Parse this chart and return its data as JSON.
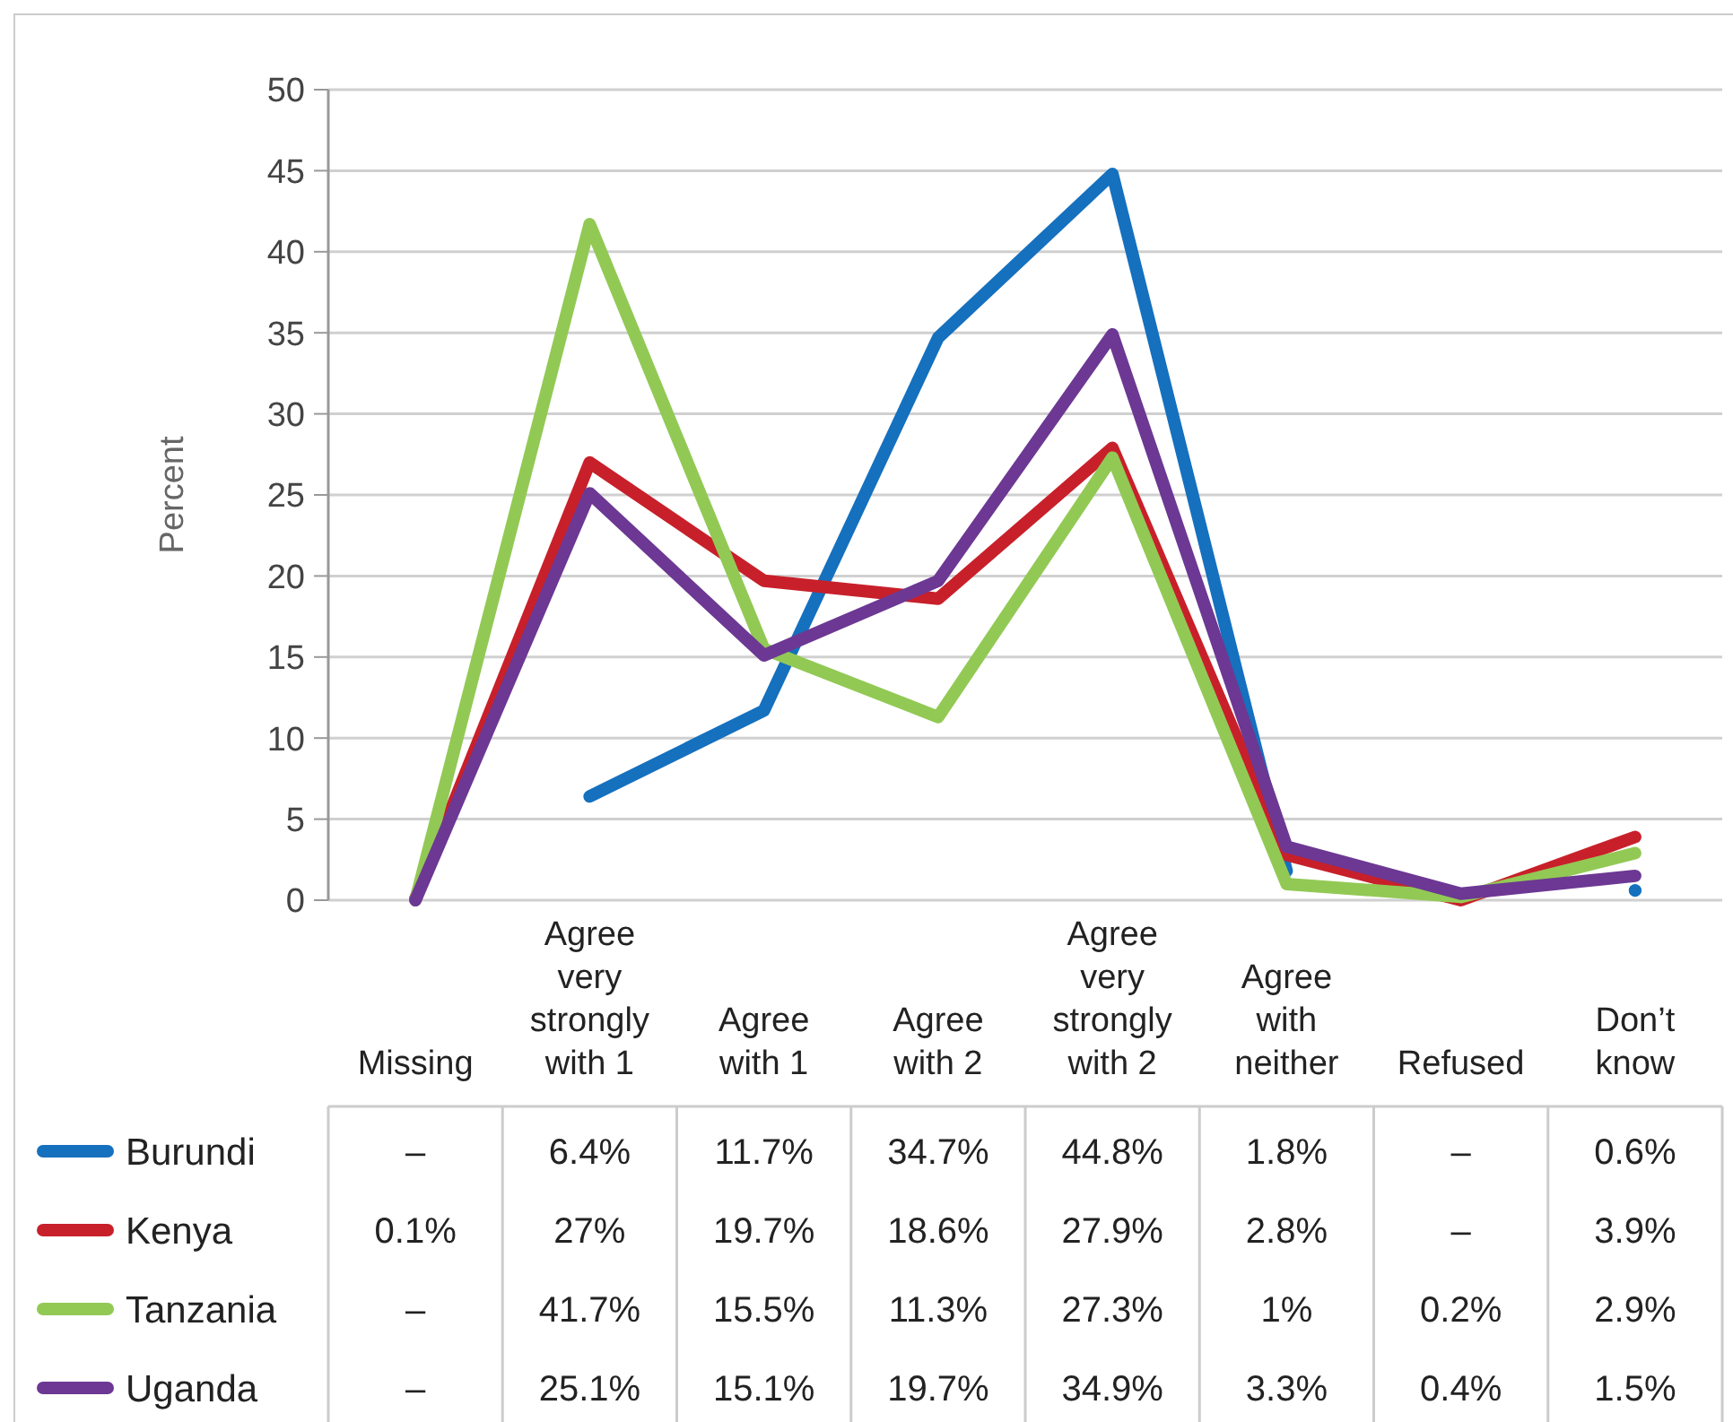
{
  "chart_data": {
    "type": "line",
    "ylabel": "Percent",
    "categories": [
      "Missing",
      "Agree very strongly with 1",
      "Agree with 1",
      "Agree with 2",
      "Agree very strongly with 2",
      "Agree with neither",
      "Refused",
      "Don’t know"
    ],
    "ylim": [
      0,
      50
    ],
    "yticks": [
      0,
      5,
      10,
      15,
      20,
      25,
      30,
      35,
      40,
      45,
      50
    ],
    "grid": "y",
    "legend": "bottom left",
    "series": [
      {
        "name": "Burundi",
        "color": "#1570be",
        "values": [
          null,
          6.4,
          11.7,
          34.7,
          44.8,
          1.8,
          null,
          0.6
        ],
        "value_labels": [
          "–",
          "6.4%",
          "11.7%",
          "34.7%",
          "44.8%",
          "1.8%",
          "–",
          "0.6%"
        ]
      },
      {
        "name": "Kenya",
        "color": "#c8202a",
        "values": [
          0.1,
          27,
          19.7,
          18.6,
          27.9,
          2.8,
          0,
          3.9
        ],
        "value_labels": [
          "0.1%",
          "27%",
          "19.7%",
          "18.6%",
          "27.9%",
          "2.8%",
          "–",
          "3.9%"
        ]
      },
      {
        "name": "Tanzania",
        "color": "#92c955",
        "values": [
          0,
          41.7,
          15.5,
          11.3,
          27.3,
          1,
          0.2,
          2.9
        ],
        "value_labels": [
          "–",
          "41.7%",
          "15.5%",
          "11.3%",
          "27.3%",
          "1%",
          "0.2%",
          "2.9%"
        ]
      },
      {
        "name": "Uganda",
        "color": "#6c3893",
        "values": [
          0,
          25.1,
          15.1,
          19.7,
          34.9,
          3.3,
          0.4,
          1.5
        ],
        "value_labels": [
          "–",
          "25.1%",
          "15.1%",
          "19.7%",
          "34.9%",
          "3.3%",
          "0.4%",
          "1.5%"
        ]
      }
    ]
  }
}
